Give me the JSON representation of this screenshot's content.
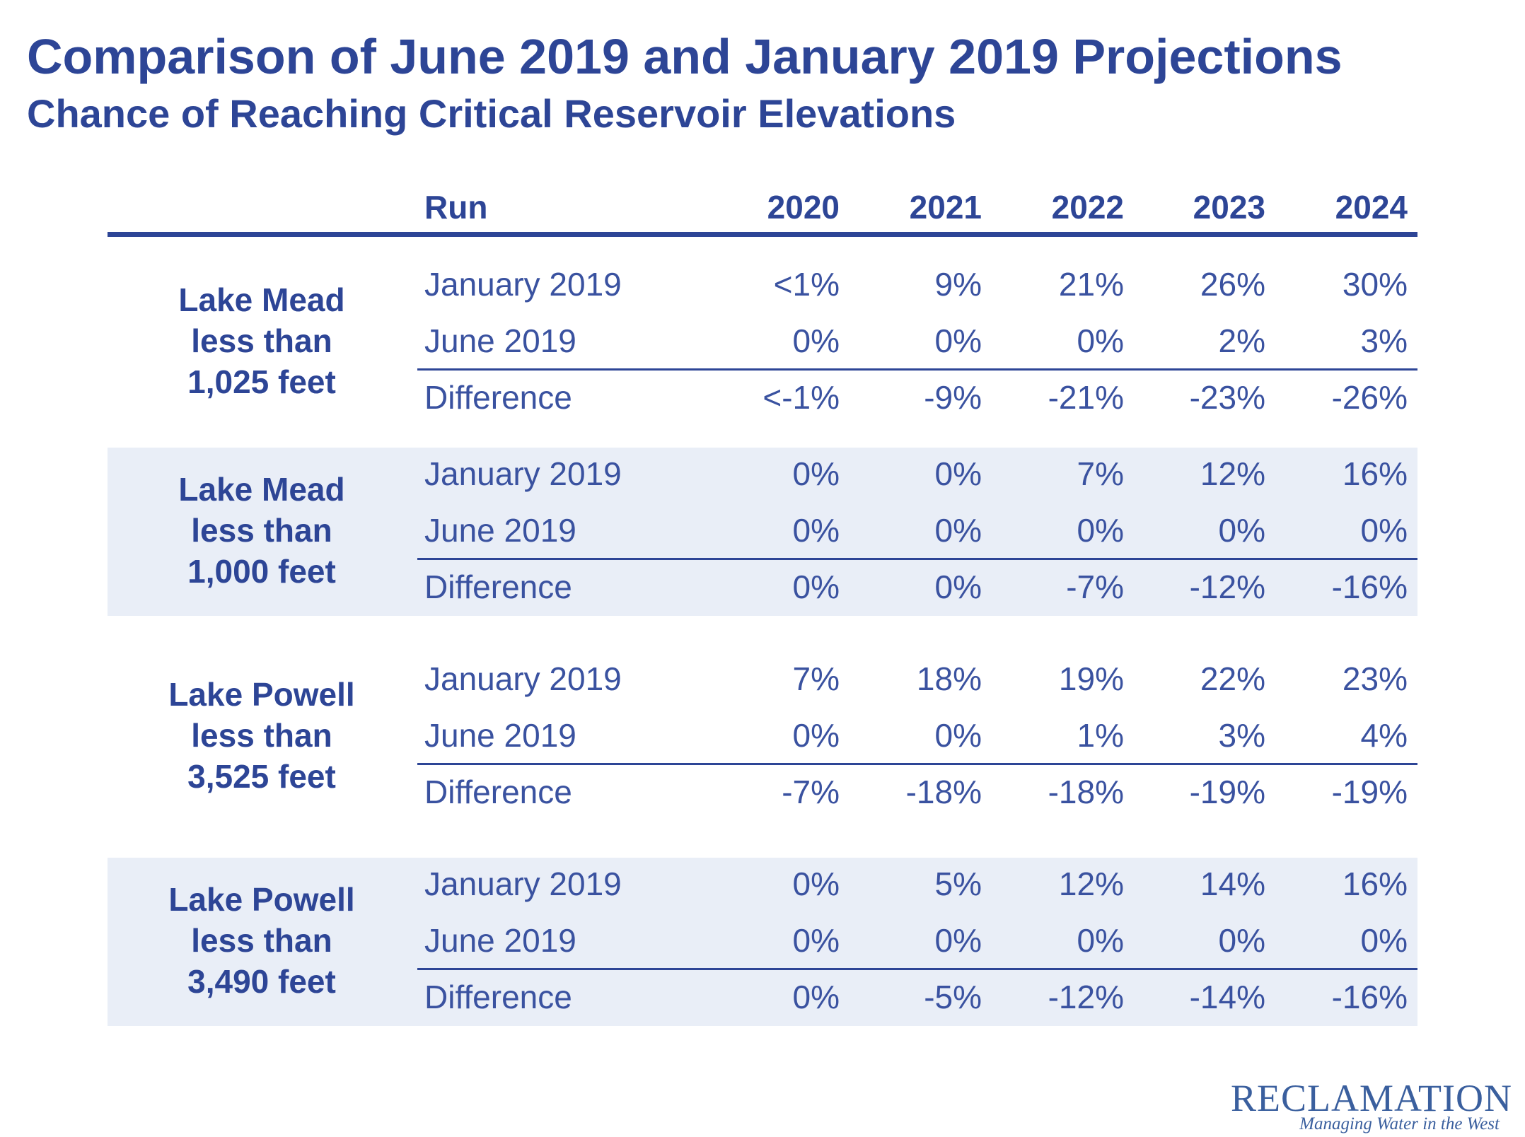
{
  "title": "Comparison of June 2019 and January 2019 Projections",
  "subtitle": "Chance of Reaching Critical Reservoir Elevations",
  "table": {
    "header": {
      "run": "Run",
      "years": [
        "2020",
        "2021",
        "2022",
        "2023",
        "2024"
      ]
    },
    "groups": [
      {
        "label": [
          "Lake Mead",
          "less than",
          "1,025 feet"
        ],
        "rows": [
          {
            "run": "January 2019",
            "values": [
              "<1%",
              "9%",
              "21%",
              "26%",
              "30%"
            ]
          },
          {
            "run": "June 2019",
            "values": [
              "0%",
              "0%",
              "0%",
              "2%",
              "3%"
            ]
          },
          {
            "run": "Difference",
            "values": [
              "<-1%",
              "-9%",
              "-21%",
              "-23%",
              "-26%"
            ]
          }
        ]
      },
      {
        "label": [
          "Lake Mead",
          "less than",
          "1,000 feet"
        ],
        "rows": [
          {
            "run": "January 2019",
            "values": [
              "0%",
              "0%",
              "7%",
              "12%",
              "16%"
            ]
          },
          {
            "run": "June 2019",
            "values": [
              "0%",
              "0%",
              "0%",
              "0%",
              "0%"
            ]
          },
          {
            "run": "Difference",
            "values": [
              "0%",
              "0%",
              "-7%",
              "-12%",
              "-16%"
            ]
          }
        ]
      },
      {
        "label": [
          "Lake Powell",
          "less than",
          "3,525 feet"
        ],
        "rows": [
          {
            "run": "January 2019",
            "values": [
              "7%",
              "18%",
              "19%",
              "22%",
              "23%"
            ]
          },
          {
            "run": "June 2019",
            "values": [
              "0%",
              "0%",
              "1%",
              "3%",
              "4%"
            ]
          },
          {
            "run": "Difference",
            "values": [
              "-7%",
              "-18%",
              "-18%",
              "-19%",
              "-19%"
            ]
          }
        ]
      },
      {
        "label": [
          "Lake Powell",
          "less than",
          "3,490 feet"
        ],
        "rows": [
          {
            "run": "January 2019",
            "values": [
              "0%",
              "5%",
              "12%",
              "14%",
              "16%"
            ]
          },
          {
            "run": "June 2019",
            "values": [
              "0%",
              "0%",
              "0%",
              "0%",
              "0%"
            ]
          },
          {
            "run": "Difference",
            "values": [
              "0%",
              "-5%",
              "-12%",
              "-14%",
              "-16%"
            ]
          }
        ]
      }
    ]
  },
  "logo": {
    "name": "RECLAMATION",
    "tagline": "Managing Water in the West"
  },
  "colors": {
    "text": "#2d4596",
    "shade": "#e9eef7"
  }
}
